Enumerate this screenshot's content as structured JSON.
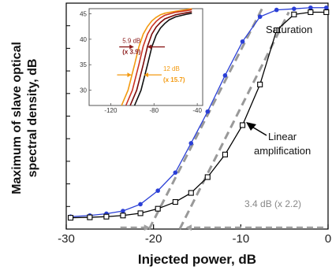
{
  "chart_data": [
    {
      "type": "line",
      "xlabel": "Injected power, dB",
      "ylabel_line1": "Maximum of slave optical",
      "ylabel_line2": "spectral density, dB",
      "xlim": [
        -30,
        0
      ],
      "ylim": [
        0,
        10
      ],
      "xticks": [
        -30,
        -20,
        -10,
        0
      ],
      "xtick_labels": [
        "-30",
        "-20",
        "-10",
        "0"
      ],
      "series": [
        {
          "color": "#2a3fd6",
          "marker": "filled-circle",
          "x": [
            -29.5,
            -27.3,
            -25.4,
            -23.5,
            -21.5,
            -19.5,
            -17.5,
            -15.7,
            -13.8,
            -11.8,
            -9.8,
            -7.8,
            -5.9,
            -3.9,
            -2,
            -0.2
          ],
          "y": [
            0.55,
            0.6,
            0.68,
            0.8,
            1.1,
            1.7,
            2.5,
            3.8,
            5.2,
            6.8,
            8.3,
            9.4,
            9.7,
            9.75,
            9.8,
            9.8
          ]
        },
        {
          "color": "#000000",
          "marker": "open-square",
          "x": [
            -29.5,
            -27.3,
            -25.4,
            -23.5,
            -21.5,
            -19.5,
            -17.5,
            -15.7,
            -13.8,
            -11.8,
            -9.8,
            -7.8,
            -5.9,
            -3.9,
            -2,
            -0.2
          ],
          "y": [
            0.5,
            0.52,
            0.55,
            0.6,
            0.7,
            0.9,
            1.2,
            1.6,
            2.3,
            3.3,
            4.6,
            6.4,
            8.8,
            9.5,
            9.6,
            9.6
          ]
        }
      ],
      "dashed_fits": [
        {
          "color": "#999999",
          "x": [
            -20.5,
            -7.5
          ],
          "y": [
            0,
            9.8
          ]
        },
        {
          "color": "#999999",
          "x": [
            -17,
            -4.5
          ],
          "y": [
            0,
            9.6
          ]
        }
      ],
      "annotations": {
        "saturation": "Saturation",
        "linear_line1": "Linear",
        "linear_line2": "amplification",
        "shift": "3.4 dB (x 2.2)",
        "shift_arrow_x": [
          -20,
          -16.7
        ],
        "shift_arrow_y": 0.55
      }
    },
    {
      "type": "line",
      "inset": true,
      "xlim": [
        -140,
        -35
      ],
      "ylim": [
        27,
        46
      ],
      "xticks": [
        -120,
        -80,
        -40
      ],
      "xtick_labels": [
        "-120",
        "-80",
        "-40"
      ],
      "yticks": [
        30,
        35,
        40,
        45
      ],
      "ytick_labels": [
        "30",
        "35",
        "40",
        "45"
      ],
      "series": [
        {
          "color": "#f39a10",
          "x": [
            -110,
            -104,
            -98,
            -94,
            -90,
            -86,
            -82,
            -78,
            -74,
            -70,
            -60,
            -50,
            -45
          ],
          "y": [
            27,
            30,
            35,
            38.5,
            41,
            42.5,
            43.6,
            44.3,
            44.8,
            45.1,
            45.5,
            45.8,
            46
          ]
        },
        {
          "color": "#cc3322",
          "x": [
            -106,
            -100,
            -94,
            -90,
            -86,
            -82,
            -78,
            -74,
            -70,
            -60,
            -50,
            -45
          ],
          "y": [
            27,
            30,
            35,
            38.6,
            41,
            42.5,
            43.5,
            44.2,
            44.7,
            45.3,
            45.6,
            45.8
          ]
        },
        {
          "color": "#7a0a0a",
          "x": [
            -102,
            -96,
            -90,
            -86,
            -82,
            -78,
            -74,
            -70,
            -60,
            -50,
            -45
          ],
          "y": [
            27,
            30,
            35,
            38.6,
            41,
            42.4,
            43.3,
            44,
            44.8,
            45.2,
            45.4
          ]
        },
        {
          "color": "#111111",
          "x": [
            -98,
            -92,
            -86,
            -82,
            -78,
            -74,
            -70,
            -66,
            -60,
            -50,
            -45
          ],
          "y": [
            27,
            30,
            35,
            38.5,
            40.8,
            42.2,
            43.1,
            43.8,
            44.4,
            44.9,
            45.1
          ]
        }
      ],
      "annotations": [
        {
          "line1": "5.9 dB",
          "line2": "(x 3.9)",
          "color": "#8b1a1a",
          "arrow_y": 38.5,
          "x_from": -99,
          "x_to": -86
        },
        {
          "line1": "12 dB",
          "line2": "(x 15.7)",
          "color": "#f39a10",
          "arrow_y": 33,
          "x_from": -101,
          "x_to": -89
        }
      ]
    }
  ]
}
